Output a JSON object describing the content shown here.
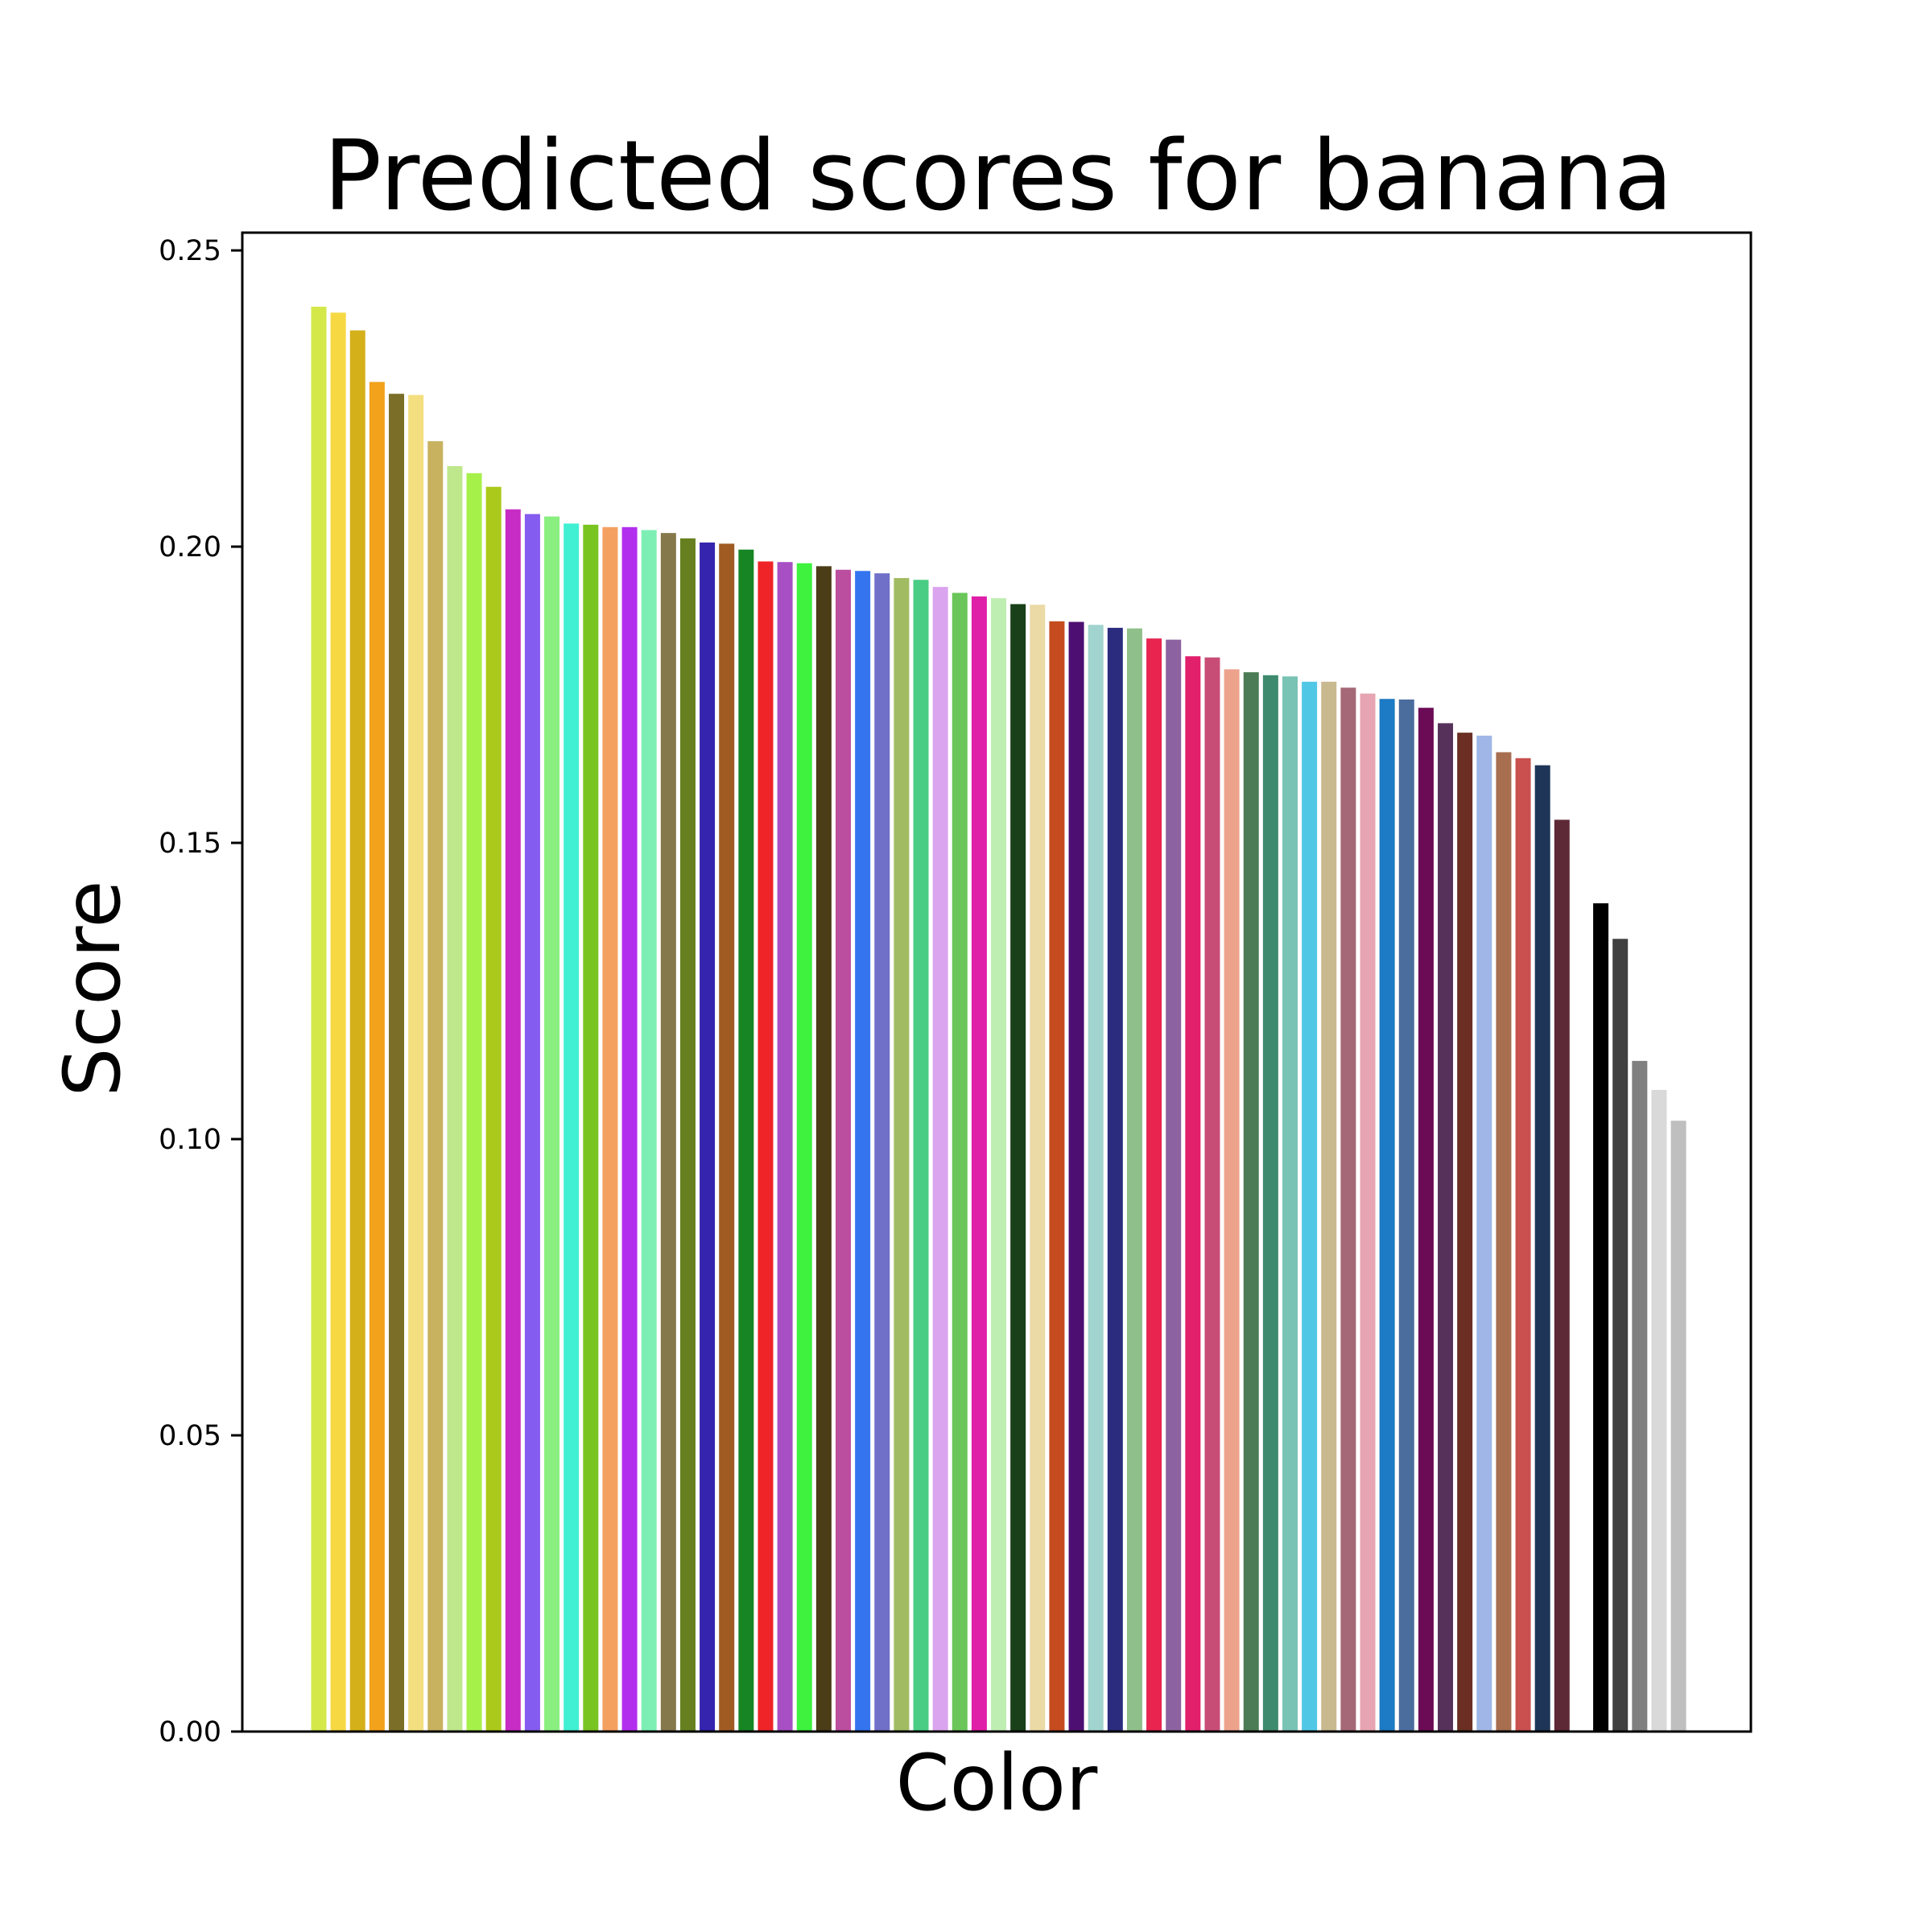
{
  "chart_data": {
    "type": "bar",
    "title": "Predicted scores for banana",
    "xlabel": "Color",
    "ylabel": "Score",
    "ylim": [
      0,
      0.253
    ],
    "yticks": [
      "0.00",
      "0.05",
      "0.10",
      "0.15",
      "0.20",
      "0.25"
    ],
    "grid": false,
    "legend": "none",
    "values": [
      0.2405,
      0.2395,
      0.2365,
      0.2278,
      0.2258,
      0.2256,
      0.2178,
      0.2136,
      0.2124,
      0.2101,
      0.2063,
      0.2055,
      0.2051,
      0.2039,
      0.2037,
      0.2033,
      0.2033,
      0.2028,
      0.2023,
      0.2014,
      0.2007,
      0.2005,
      0.1995,
      0.1975,
      0.1974,
      0.1972,
      0.1967,
      0.1961,
      0.1959,
      0.1955,
      0.1947,
      0.1944,
      0.1932,
      0.1922,
      0.1916,
      0.1913,
      0.1903,
      0.1902,
      0.1874,
      0.1873,
      0.1868,
      0.1863,
      0.1862,
      0.1845,
      0.1843,
      0.1815,
      0.1813,
      0.1793,
      0.1788,
      0.1783,
      0.1781,
      0.1772,
      0.1772,
      0.1762,
      0.1752,
      0.1743,
      0.1742,
      0.1728,
      0.1702,
      0.1686,
      0.1681,
      0.1653,
      0.1643,
      0.1631,
      0.1539,
      0.1398,
      0.1338,
      0.1132,
      0.1083,
      0.1031
    ],
    "colors": [
      "#d4e84a",
      "#f6d843",
      "#d4b01a",
      "#f3a21b",
      "#7a6e28",
      "#f4df80",
      "#c8b260",
      "#bfe78c",
      "#a6f04a",
      "#abc91a",
      "#c72dc4",
      "#845cef",
      "#8aef80",
      "#41efd2",
      "#7ac421",
      "#f4a061",
      "#b22fee",
      "#7def b4",
      "#85784b",
      "#66801f",
      "#3424ae",
      "#a05b23",
      "#178523",
      "#ef2428",
      "#a84fc4",
      "#3ef23e",
      "#4b3d17",
      "#bb4e9e",
      "#3574ef",
      "#7070c8",
      "#a1bb62",
      "#49cd84",
      "#dba4ee",
      "#6ac65a",
      "#e01fa8",
      "#bfeeb2",
      "#194018",
      "#ebdaa6",
      "#c54c1f",
      "#4e0f72",
      "#a1d4ce",
      "#2b2c7e",
      "#8fbf8b",
      "#e8244f",
      "#8c63a0",
      "#e11f6b",
      "#c84d76",
      "#eda28c",
      "#4c7c55",
      "#3e8a6e",
      "#79c3b5",
      "#51c7e6",
      "#c9b98e",
      "#a56876",
      "#e7a4b2",
      "#1d7ac4",
      "#4b6d9e",
      "#6b0b56",
      "#56325b",
      "#6a2f22",
      "#9fb6e6",
      "#a76e50",
      "#c9504f",
      "#1e3557",
      "#5e2937",
      "#000000",
      "#404040",
      "#808080",
      "#d9d9d9",
      "#bfbfbf"
    ],
    "positions": [
      0,
      1,
      2,
      3,
      4,
      5,
      6,
      7,
      8,
      9,
      10,
      11,
      12,
      13,
      14,
      15,
      16,
      17,
      18,
      19,
      20,
      21,
      22,
      23,
      24,
      25,
      26,
      27,
      28,
      29,
      30,
      31,
      32,
      33,
      34,
      35,
      36,
      37,
      38,
      39,
      40,
      41,
      42,
      43,
      44,
      45,
      46,
      47,
      48,
      49,
      50,
      51,
      52,
      53,
      54,
      55,
      56,
      57,
      58,
      59,
      60,
      61,
      62,
      63,
      64,
      66,
      67,
      68,
      69,
      70
    ]
  }
}
